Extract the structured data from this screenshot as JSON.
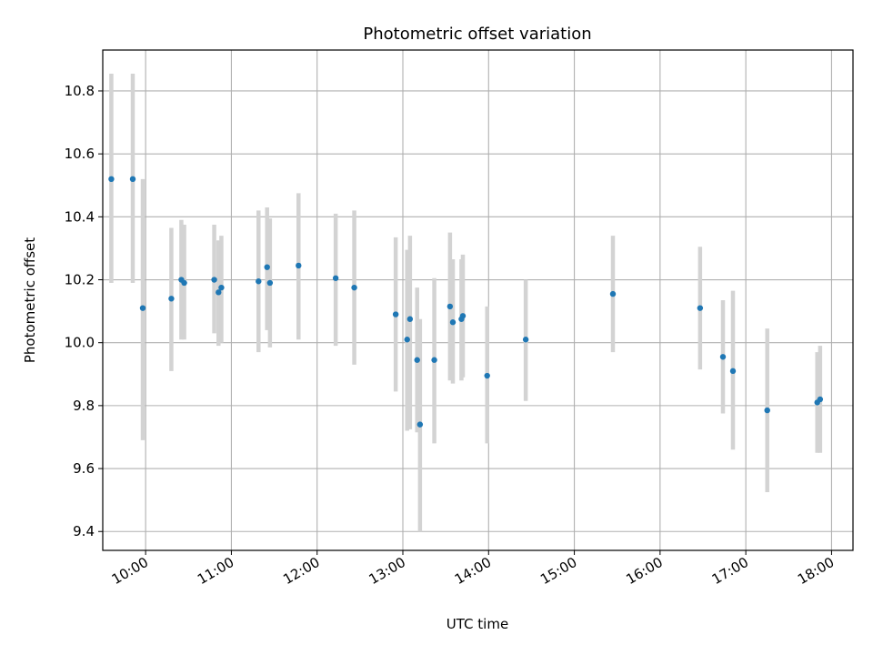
{
  "chart_data": {
    "type": "scatter",
    "title": "Photometric offset variation",
    "xlabel": "UTC time",
    "ylabel": "Photometric offset",
    "x_axis_type": "time",
    "xlim": [
      "09:30",
      "18:15"
    ],
    "ylim": [
      9.34,
      10.93
    ],
    "x_ticks": [
      "10:00",
      "11:00",
      "12:00",
      "13:00",
      "14:00",
      "15:00",
      "16:00",
      "17:00",
      "18:00"
    ],
    "y_ticks": [
      9.4,
      9.6,
      9.8,
      10.0,
      10.2,
      10.4,
      10.6,
      10.8
    ],
    "y_tick_labels": [
      "9.4",
      "9.6",
      "9.8",
      "10.0",
      "10.2",
      "10.4",
      "10.6",
      "10.8"
    ],
    "grid": true,
    "marker_color": "#1f77b4",
    "errorbar_color": "#d3d3d3",
    "points": [
      {
        "x": "09:36",
        "y": 10.52,
        "ylow": 10.19,
        "yhigh": 10.855
      },
      {
        "x": "09:51",
        "y": 10.52,
        "ylow": 10.19,
        "yhigh": 10.855
      },
      {
        "x": "09:58",
        "y": 10.11,
        "ylow": 9.69,
        "yhigh": 10.52
      },
      {
        "x": "10:18",
        "y": 10.14,
        "ylow": 9.91,
        "yhigh": 10.365
      },
      {
        "x": "10:25",
        "y": 10.2,
        "ylow": 10.01,
        "yhigh": 10.39
      },
      {
        "x": "10:27",
        "y": 10.19,
        "ylow": 10.01,
        "yhigh": 10.375
      },
      {
        "x": "10:48",
        "y": 10.2,
        "ylow": 10.03,
        "yhigh": 10.375
      },
      {
        "x": "10:51",
        "y": 10.16,
        "ylow": 9.99,
        "yhigh": 10.325
      },
      {
        "x": "10:53",
        "y": 10.175,
        "ylow": 10.0,
        "yhigh": 10.34
      },
      {
        "x": "11:19",
        "y": 10.195,
        "ylow": 9.97,
        "yhigh": 10.42
      },
      {
        "x": "11:25",
        "y": 10.24,
        "ylow": 10.04,
        "yhigh": 10.43
      },
      {
        "x": "11:27",
        "y": 10.19,
        "ylow": 9.985,
        "yhigh": 10.395
      },
      {
        "x": "11:47",
        "y": 10.245,
        "ylow": 10.01,
        "yhigh": 10.475
      },
      {
        "x": "12:13",
        "y": 10.205,
        "ylow": 9.99,
        "yhigh": 10.41
      },
      {
        "x": "12:26",
        "y": 10.175,
        "ylow": 9.93,
        "yhigh": 10.42
      },
      {
        "x": "12:55",
        "y": 10.09,
        "ylow": 9.845,
        "yhigh": 10.335
      },
      {
        "x": "13:03",
        "y": 10.01,
        "ylow": 9.72,
        "yhigh": 10.295
      },
      {
        "x": "13:05",
        "y": 10.075,
        "ylow": 9.725,
        "yhigh": 10.34
      },
      {
        "x": "13:10",
        "y": 9.945,
        "ylow": 9.715,
        "yhigh": 10.175
      },
      {
        "x": "13:12",
        "y": 9.74,
        "ylow": 9.4,
        "yhigh": 10.075
      },
      {
        "x": "13:22",
        "y": 9.945,
        "ylow": 9.68,
        "yhigh": 10.205
      },
      {
        "x": "13:33",
        "y": 10.115,
        "ylow": 9.88,
        "yhigh": 10.35
      },
      {
        "x": "13:35",
        "y": 10.065,
        "ylow": 9.87,
        "yhigh": 10.265
      },
      {
        "x": "13:41",
        "y": 10.075,
        "ylow": 9.88,
        "yhigh": 10.265
      },
      {
        "x": "13:42",
        "y": 10.085,
        "ylow": 9.89,
        "yhigh": 10.28
      },
      {
        "x": "13:59",
        "y": 9.895,
        "ylow": 9.68,
        "yhigh": 10.115
      },
      {
        "x": "14:26",
        "y": 10.01,
        "ylow": 9.815,
        "yhigh": 10.2
      },
      {
        "x": "15:27",
        "y": 10.155,
        "ylow": 9.97,
        "yhigh": 10.34
      },
      {
        "x": "16:28",
        "y": 10.11,
        "ylow": 9.915,
        "yhigh": 10.305
      },
      {
        "x": "16:44",
        "y": 9.955,
        "ylow": 9.775,
        "yhigh": 10.135
      },
      {
        "x": "16:51",
        "y": 9.91,
        "ylow": 9.66,
        "yhigh": 10.165
      },
      {
        "x": "17:15",
        "y": 9.785,
        "ylow": 9.525,
        "yhigh": 10.045
      },
      {
        "x": "17:50",
        "y": 9.81,
        "ylow": 9.65,
        "yhigh": 9.97
      },
      {
        "x": "17:52",
        "y": 9.82,
        "ylow": 9.65,
        "yhigh": 9.99
      }
    ]
  }
}
